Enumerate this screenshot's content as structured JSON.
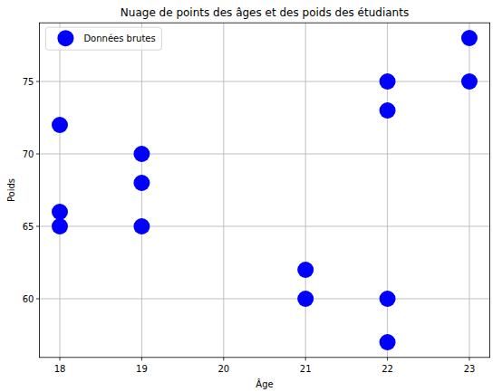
{
  "chart_data": {
    "type": "scatter",
    "title": "Nuage de points des âges et des poids des étudiants",
    "x_label": "Âge",
    "y_label": "Poids",
    "series": [
      {
        "name": "Données brutes",
        "color": "#0000ff",
        "marker": "circle",
        "x": [
          18,
          18,
          18,
          19,
          19,
          19,
          21,
          21,
          22,
          22,
          22,
          22,
          23,
          23
        ],
        "values": [
          72,
          66,
          65,
          70,
          68,
          65,
          62,
          60,
          75,
          73,
          60,
          57,
          78,
          75
        ]
      }
    ],
    "xlim": [
      17.75,
      23.25
    ],
    "ylim": [
      55.95,
      79.05
    ],
    "xticks": [
      18,
      19,
      20,
      21,
      22,
      23
    ],
    "yticks": [
      60,
      65,
      70,
      75
    ],
    "grid": true,
    "legend": "upper left"
  }
}
